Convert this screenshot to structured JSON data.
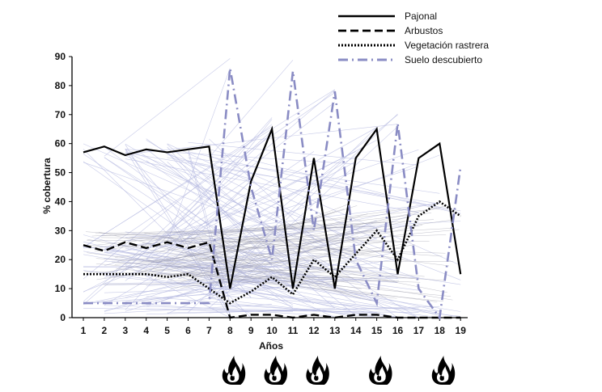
{
  "chart_data": {
    "type": "line",
    "title": "",
    "xlabel": "Años",
    "ylabel": "% cobertura",
    "x": [
      1,
      2,
      3,
      4,
      5,
      6,
      7,
      8,
      9,
      10,
      11,
      12,
      13,
      14,
      15,
      16,
      17,
      18,
      19
    ],
    "ylim": [
      0,
      90
    ],
    "yticks": [
      0,
      10,
      20,
      30,
      40,
      50,
      60,
      70,
      80,
      90
    ],
    "grid": false,
    "legend_position": "top-right",
    "series": [
      {
        "name": "Pajonal",
        "style": "solid",
        "color": "#000000",
        "values": [
          57,
          59,
          56,
          58,
          57,
          58,
          59,
          10,
          47,
          65,
          10,
          55,
          10,
          55,
          65,
          15,
          55,
          60,
          15
        ]
      },
      {
        "name": "Arbustos",
        "style": "dashed",
        "color": "#000000",
        "values": [
          25,
          23,
          26,
          24,
          26,
          24,
          26,
          0,
          1,
          1,
          0,
          1,
          0,
          1,
          1,
          0,
          0,
          0,
          0
        ]
      },
      {
        "name": "Vegetación rastrera",
        "style": "dotted",
        "color": "#000000",
        "values": [
          15,
          15,
          15,
          15,
          14,
          15,
          10,
          5,
          9,
          14,
          8,
          20,
          14,
          22,
          30,
          20,
          35,
          40,
          35
        ]
      },
      {
        "name": "Suelo descubierto",
        "style": "dashdot",
        "color": "#8a8cc4",
        "values": [
          5,
          5,
          5,
          5,
          5,
          5,
          5,
          86,
          45,
          20,
          85,
          30,
          78,
          20,
          5,
          67,
          10,
          0,
          52
        ]
      }
    ],
    "fire_years": [
      8,
      10,
      12,
      15,
      18
    ]
  },
  "colors": {
    "simulation_lines": "#b4b8e0",
    "fire_icon": "#000000"
  }
}
